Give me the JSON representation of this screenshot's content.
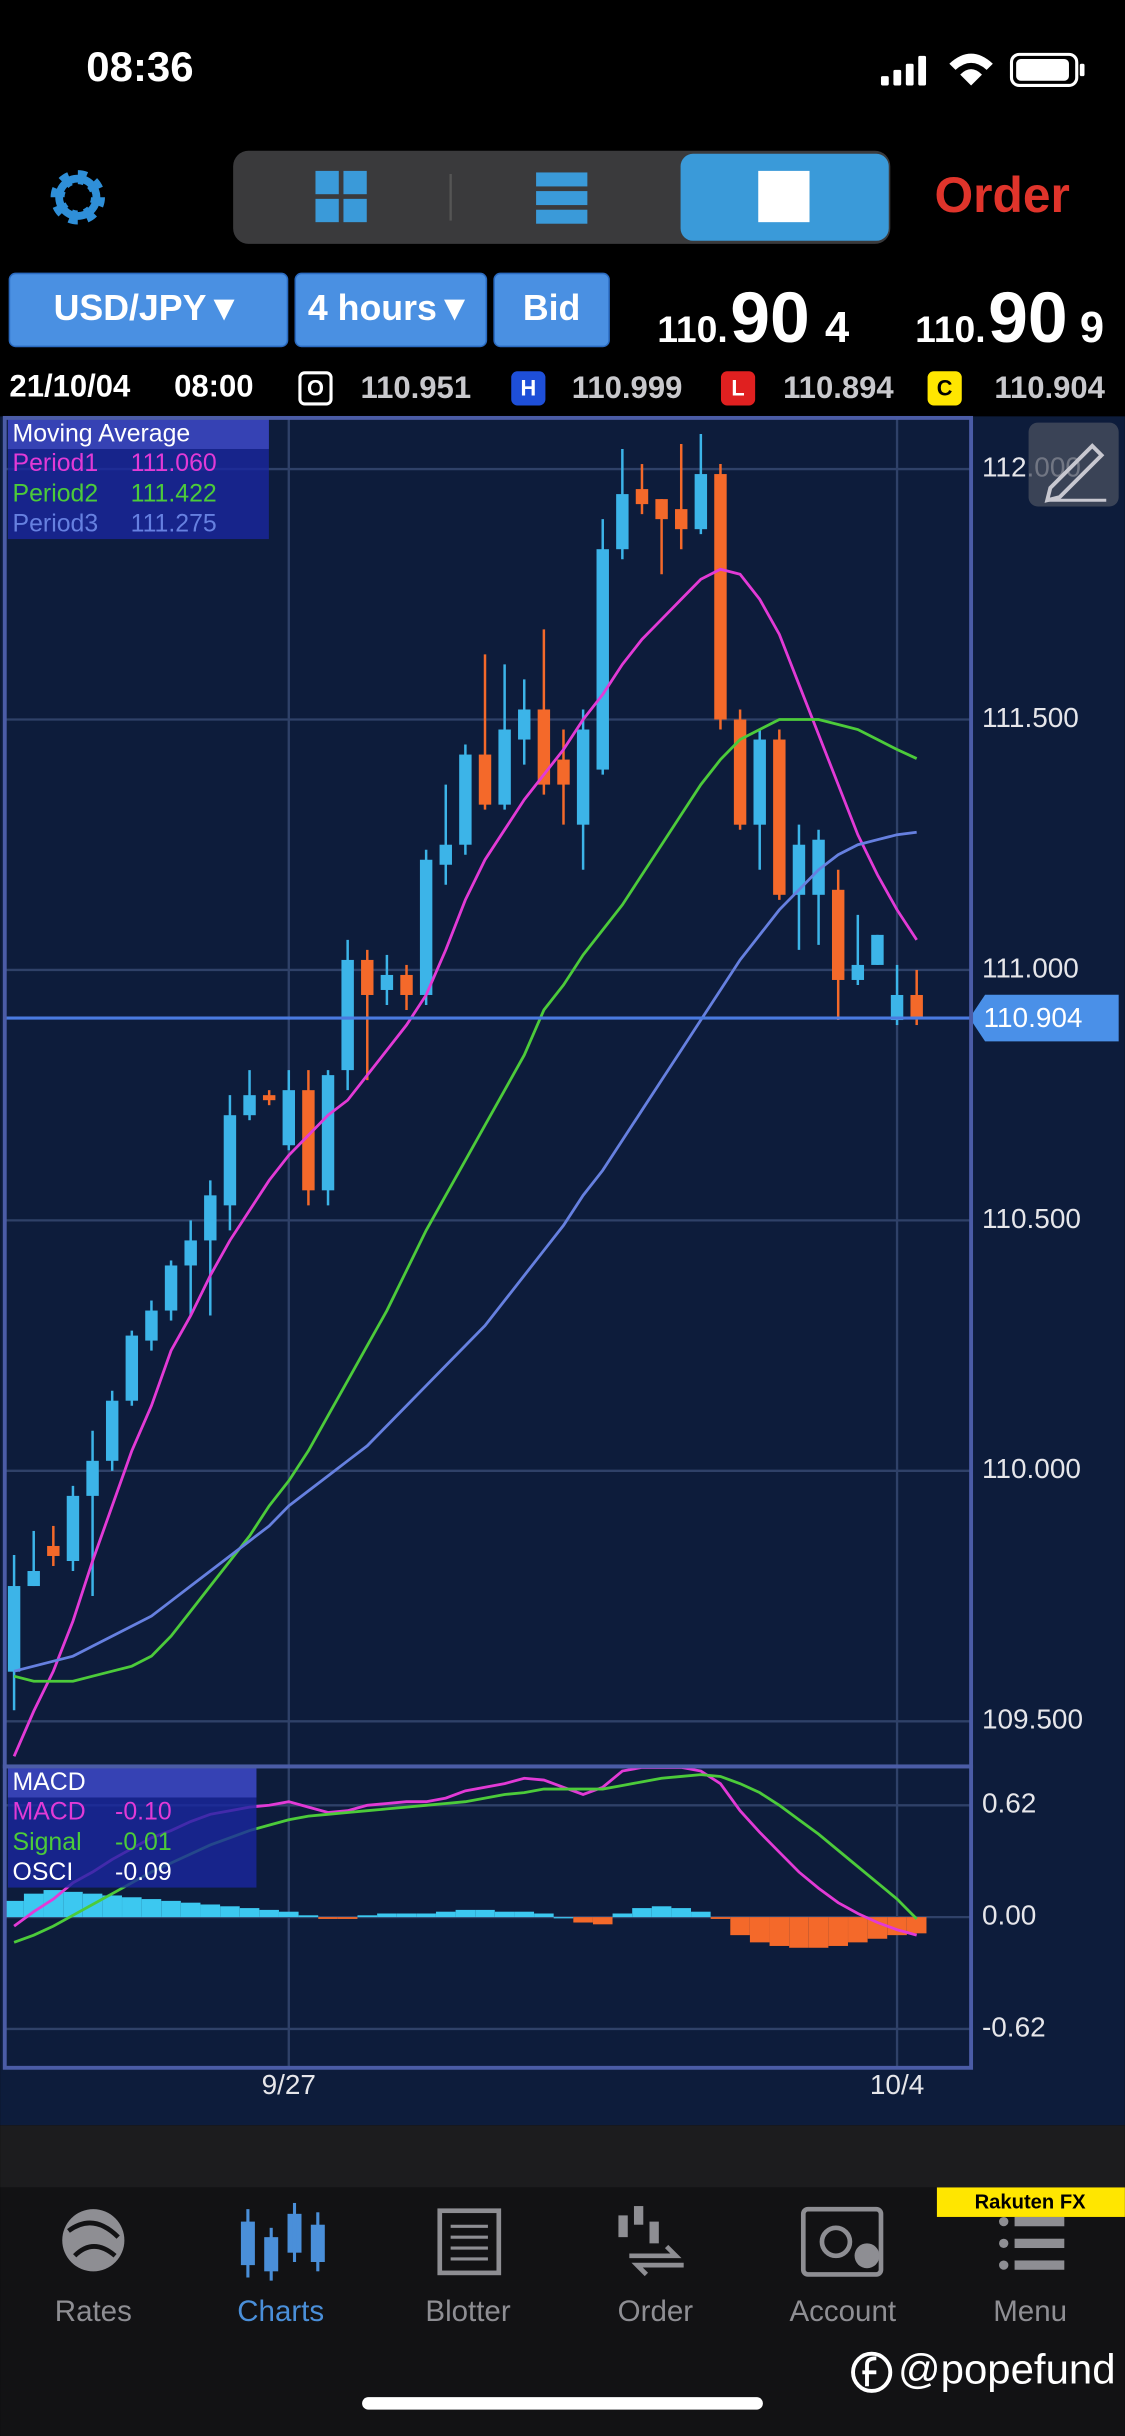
{
  "status_bar": {
    "time": "08:36"
  },
  "toolbar": {
    "order": "Order"
  },
  "instrument": {
    "pair": "USD/JPY▼",
    "timeframe": "4 hours▼",
    "side": "Bid",
    "bid": {
      "prefix": "110.",
      "pips": "90",
      "fraction": "4"
    },
    "ask": {
      "prefix": "110.",
      "pips": "90",
      "fraction": "9"
    }
  },
  "ohlc": {
    "date": "21/10/04",
    "time": "08:00",
    "fields": [
      {
        "key": "O",
        "value": "110.951"
      },
      {
        "key": "H",
        "value": "110.999"
      },
      {
        "key": "L",
        "value": "110.894"
      },
      {
        "key": "C",
        "value": "110.904"
      }
    ]
  },
  "chart_data": [
    {
      "type": "candlestick",
      "title": "Moving Average",
      "open": [
        109.599,
        109.77,
        109.85,
        109.82,
        109.95,
        110.02,
        110.14,
        110.26,
        110.32,
        110.41,
        110.46,
        110.53,
        110.71,
        110.75,
        110.65,
        110.76,
        110.56,
        110.8,
        111.02,
        110.96,
        110.99,
        110.95,
        111.21,
        111.25,
        111.43,
        111.33,
        111.46,
        111.52,
        111.42,
        111.29,
        111.4,
        111.84,
        111.96,
        111.94,
        111.92,
        111.88,
        111.99,
        111.5,
        111.29,
        111.46,
        111.15,
        111.15,
        111.16,
        110.98,
        111.01,
        110.9,
        110.95
      ],
      "high": [
        109.832,
        109.88,
        109.89,
        109.97,
        110.08,
        110.16,
        110.28,
        110.34,
        110.42,
        110.5,
        110.58,
        110.75,
        110.8,
        110.76,
        110.8,
        110.8,
        110.8,
        111.06,
        111.04,
        111.03,
        111.01,
        111.24,
        111.37,
        111.45,
        111.63,
        111.61,
        111.58,
        111.68,
        111.48,
        111.52,
        111.9,
        112.04,
        112.01,
        111.94,
        112.05,
        112.07,
        112.01,
        111.52,
        111.48,
        111.48,
        111.29,
        111.28,
        111.2,
        111.11,
        111.07,
        111.01,
        111.0
      ],
      "low": [
        109.522,
        109.77,
        109.81,
        109.8,
        109.75,
        110.0,
        110.13,
        110.24,
        110.3,
        110.31,
        110.31,
        110.48,
        110.7,
        110.73,
        110.64,
        110.53,
        110.53,
        110.76,
        110.78,
        110.93,
        110.92,
        110.93,
        111.17,
        111.23,
        111.32,
        111.32,
        111.41,
        111.35,
        111.29,
        111.2,
        111.39,
        111.82,
        111.91,
        111.79,
        111.84,
        111.87,
        111.48,
        111.28,
        111.2,
        111.14,
        111.04,
        111.05,
        110.9,
        110.97,
        111.01,
        110.89,
        110.89
      ],
      "close": [
        109.77,
        109.8,
        109.83,
        109.95,
        110.02,
        110.14,
        110.27,
        110.32,
        110.41,
        110.46,
        110.55,
        110.71,
        110.75,
        110.74,
        110.76,
        110.56,
        110.79,
        111.02,
        110.95,
        110.99,
        110.95,
        111.22,
        111.25,
        111.43,
        111.33,
        111.48,
        111.52,
        111.37,
        111.37,
        111.48,
        111.84,
        111.95,
        111.93,
        111.9,
        111.88,
        111.99,
        111.5,
        111.29,
        111.46,
        111.15,
        111.25,
        111.26,
        110.98,
        111.01,
        111.07,
        110.95,
        110.904
      ],
      "up_color": "#3cb4e8",
      "down_color": "#f4692a",
      "series": [
        {
          "name": "Period1",
          "color": "#e23ad6",
          "value_label": "111.060",
          "values": [
            109.43,
            109.52,
            109.6,
            109.7,
            109.82,
            109.93,
            110.04,
            110.13,
            110.24,
            110.31,
            110.39,
            110.46,
            110.52,
            110.58,
            110.63,
            110.67,
            110.71,
            110.74,
            110.79,
            110.84,
            110.89,
            110.95,
            111.04,
            111.14,
            111.22,
            111.28,
            111.34,
            111.39,
            111.44,
            111.5,
            111.55,
            111.61,
            111.66,
            111.7,
            111.74,
            111.78,
            111.8,
            111.79,
            111.74,
            111.67,
            111.57,
            111.47,
            111.37,
            111.27,
            111.19,
            111.12,
            111.06
          ]
        },
        {
          "name": "Period2",
          "color": "#4ccb3a",
          "value_label": "111.422",
          "values": [
            109.59,
            109.58,
            109.58,
            109.58,
            109.59,
            109.6,
            109.61,
            109.63,
            109.67,
            109.72,
            109.77,
            109.82,
            109.87,
            109.93,
            109.98,
            110.04,
            110.11,
            110.18,
            110.25,
            110.32,
            110.4,
            110.48,
            110.55,
            110.62,
            110.69,
            110.76,
            110.83,
            110.92,
            110.97,
            111.03,
            111.08,
            111.13,
            111.19,
            111.25,
            111.31,
            111.37,
            111.42,
            111.46,
            111.48,
            111.5,
            111.5,
            111.5,
            111.49,
            111.48,
            111.46,
            111.44,
            111.422
          ]
        },
        {
          "name": "Period3",
          "color": "#6680e0",
          "value_label": "111.275",
          "values": [
            109.6,
            109.61,
            109.62,
            109.63,
            109.65,
            109.67,
            109.69,
            109.71,
            109.74,
            109.77,
            109.8,
            109.83,
            109.86,
            109.89,
            109.93,
            109.96,
            109.99,
            110.02,
            110.05,
            110.09,
            110.13,
            110.17,
            110.21,
            110.25,
            110.29,
            110.34,
            110.39,
            110.44,
            110.49,
            110.55,
            110.6,
            110.66,
            110.72,
            110.78,
            110.84,
            110.9,
            110.96,
            111.02,
            111.07,
            111.12,
            111.16,
            111.2,
            111.23,
            111.25,
            111.26,
            111.27,
            111.275
          ]
        }
      ],
      "price_line": {
        "value": 110.904,
        "label": "110.904"
      },
      "ylim": [
        109.413,
        112.099
      ],
      "yticks": [
        {
          "value": 112,
          "label": "112.000"
        },
        {
          "value": 111.5,
          "label": "111.500"
        },
        {
          "value": 111,
          "label": "111.000"
        },
        {
          "value": 110.5,
          "label": "110.500"
        },
        {
          "value": 110,
          "label": "110.000"
        },
        {
          "value": 109.5,
          "label": "109.500"
        }
      ],
      "grid": true
    },
    {
      "type": "macd",
      "title": "MACD",
      "categories": [
        null,
        null,
        null,
        null,
        null,
        null,
        null,
        null,
        null,
        null,
        null,
        null,
        null,
        null,
        "9/27",
        null,
        null,
        null,
        null,
        null,
        null,
        null,
        null,
        null,
        null,
        null,
        null,
        null,
        null,
        null,
        null,
        null,
        null,
        null,
        null,
        null,
        null,
        null,
        null,
        null,
        null,
        null,
        null,
        null,
        null,
        "10/4",
        null
      ],
      "series": [
        {
          "name": "MACD",
          "color": "#e23ad6",
          "value_label": "-0.10",
          "values": [
            -0.05,
            0.03,
            0.1,
            0.19,
            0.25,
            0.32,
            0.38,
            0.44,
            0.48,
            0.53,
            0.57,
            0.59,
            0.61,
            0.62,
            0.64,
            0.61,
            0.58,
            0.59,
            0.62,
            0.63,
            0.64,
            0.64,
            0.66,
            0.7,
            0.72,
            0.74,
            0.77,
            0.76,
            0.72,
            0.68,
            0.72,
            0.81,
            0.83,
            0.83,
            0.83,
            0.81,
            0.74,
            0.59,
            0.47,
            0.36,
            0.25,
            0.16,
            0.08,
            0.02,
            -0.03,
            -0.07,
            -0.1
          ]
        },
        {
          "name": "Signal",
          "color": "#4ccb3a",
          "value_label": "-0.01",
          "values": [
            -0.14,
            -0.1,
            -0.05,
            0.01,
            0.07,
            0.13,
            0.19,
            0.25,
            0.3,
            0.35,
            0.4,
            0.44,
            0.48,
            0.51,
            0.54,
            0.56,
            0.57,
            0.58,
            0.59,
            0.6,
            0.61,
            0.62,
            0.63,
            0.64,
            0.66,
            0.68,
            0.69,
            0.71,
            0.71,
            0.71,
            0.71,
            0.73,
            0.75,
            0.77,
            0.78,
            0.79,
            0.78,
            0.74,
            0.69,
            0.62,
            0.54,
            0.46,
            0.37,
            0.28,
            0.19,
            0.1,
            -0.01
          ]
        },
        {
          "name": "OSCI",
          "color": "#3cc8f0",
          "negative_color": "#f4692a",
          "value_label": "-0.09",
          "values": [
            0.09,
            0.13,
            0.15,
            0.14,
            0.13,
            0.12,
            0.11,
            0.1,
            0.09,
            0.08,
            0.07,
            0.06,
            0.05,
            0.04,
            0.03,
            0.01,
            -0.01,
            -0.01,
            0.01,
            0.02,
            0.02,
            0.02,
            0.03,
            0.04,
            0.04,
            0.03,
            0.03,
            0.02,
            0.0,
            -0.03,
            -0.04,
            0.02,
            0.05,
            0.06,
            0.05,
            0.03,
            -0.01,
            -0.1,
            -0.14,
            -0.16,
            -0.17,
            -0.17,
            -0.16,
            -0.14,
            -0.12,
            -0.1,
            -0.09
          ]
        }
      ],
      "ylim": [
        -0.827,
        0.827
      ],
      "yticks": [
        0.62,
        {
          "value": 0,
          "label": "0.00"
        },
        -0.62
      ],
      "grid": true
    }
  ],
  "tab_bar": {
    "tabs": [
      "Rates",
      "Charts",
      "Blotter",
      "Order",
      "Account",
      "Menu"
    ],
    "active": 1
  },
  "badge": "Rakuten FX",
  "watermark": "@popefund"
}
